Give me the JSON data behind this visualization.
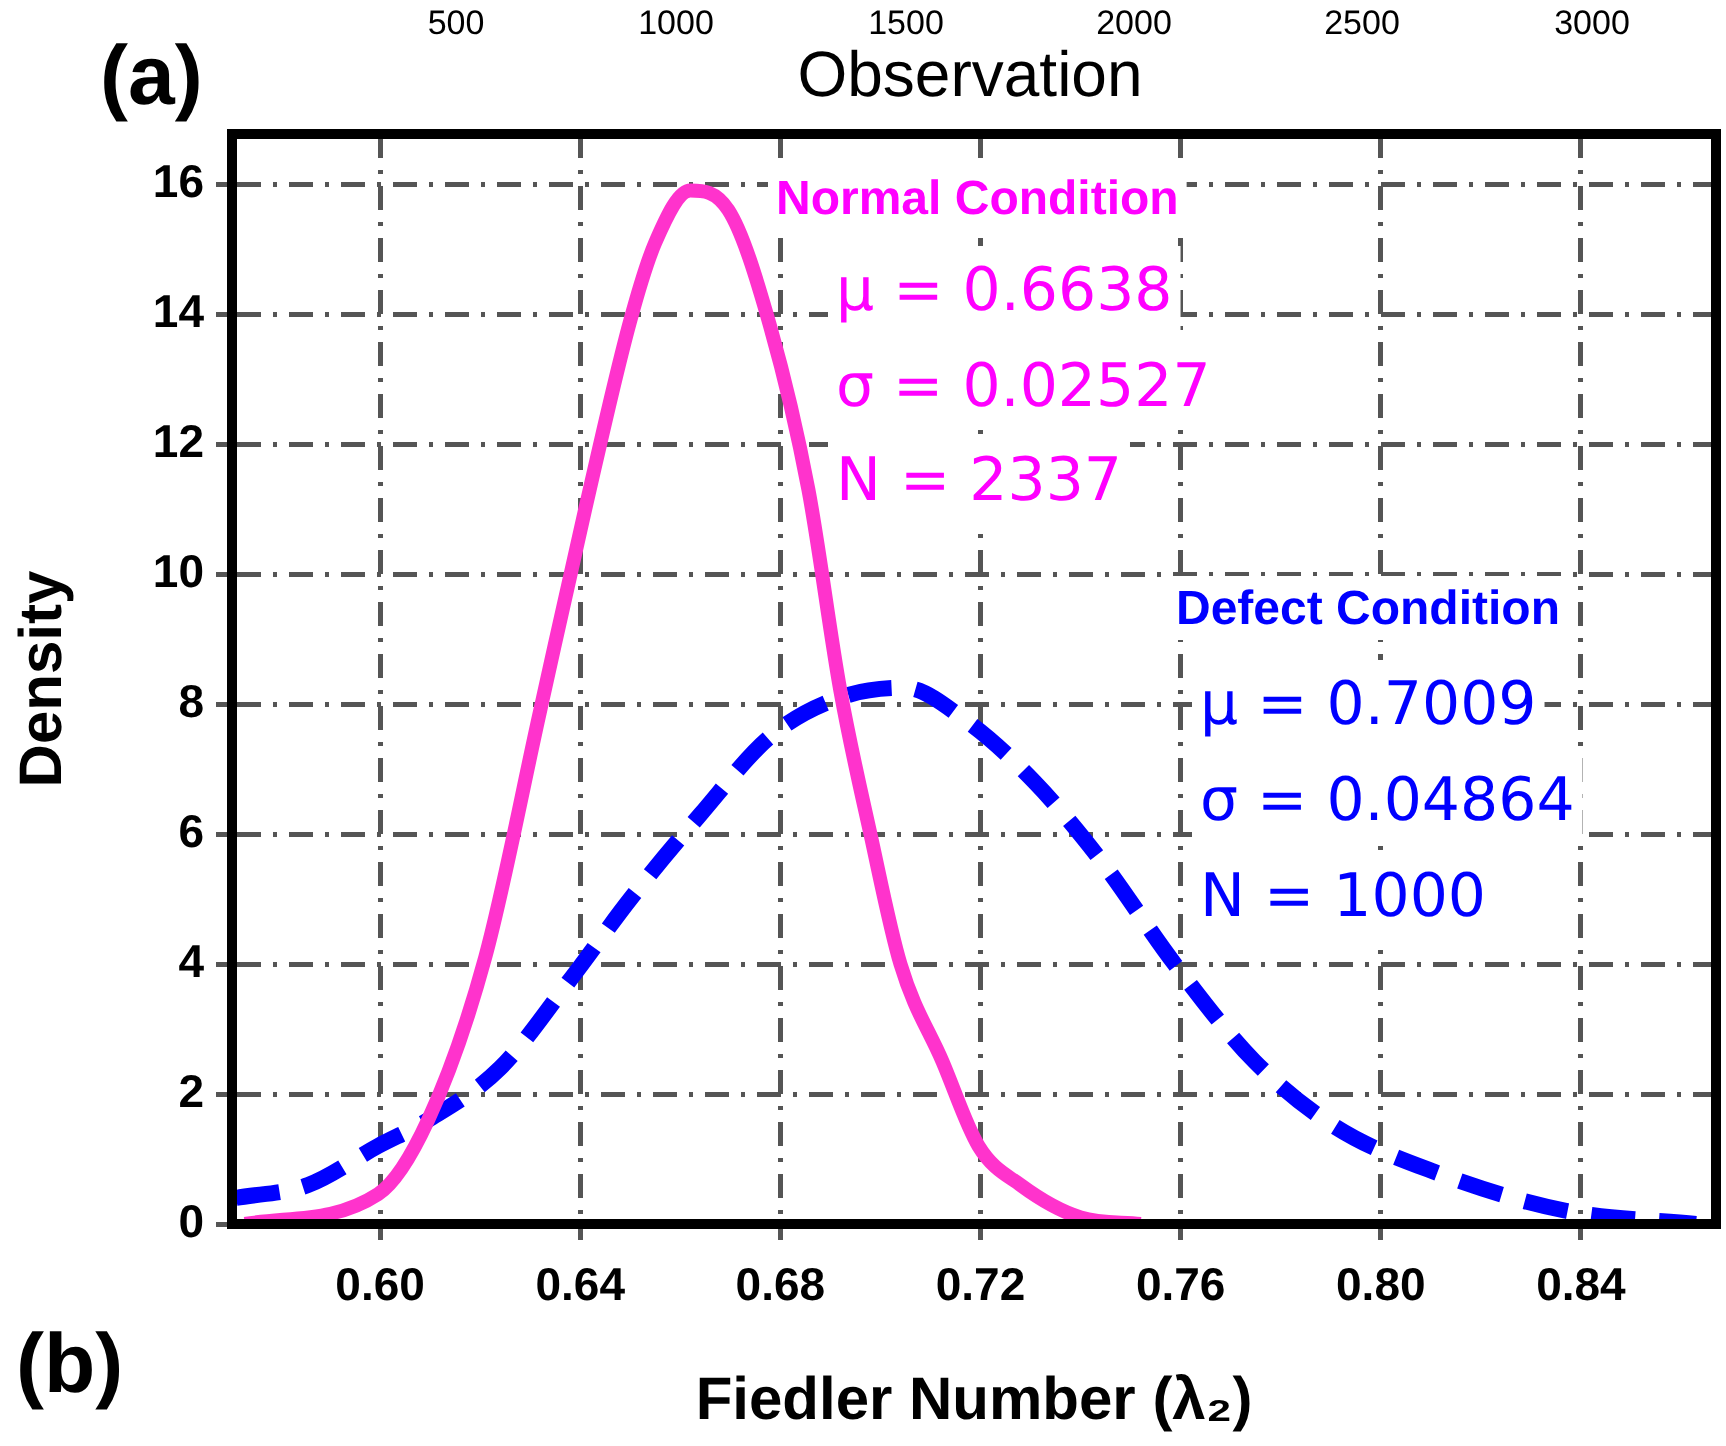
{
  "chart_data": {
    "type": "line",
    "xlabel": "Fiedler Number (λ₂)",
    "ylabel": "Density",
    "xlim": [
      0.5704,
      0.867
    ],
    "ylim": [
      0,
      16.77
    ],
    "xticks": [
      {
        "value": 0.6,
        "label": "0.60"
      },
      {
        "value": 0.64,
        "label": "0.64"
      },
      {
        "value": 0.68,
        "label": "0.68"
      },
      {
        "value": 0.72,
        "label": "0.72"
      },
      {
        "value": 0.76,
        "label": "0.76"
      },
      {
        "value": 0.8,
        "label": "0.80"
      },
      {
        "value": 0.84,
        "label": "0.84"
      }
    ],
    "yticks": [
      0,
      2,
      4,
      6,
      8,
      10,
      12,
      14,
      16
    ],
    "grid": true,
    "legend": false,
    "marker": "none",
    "series": [
      {
        "name": "Normal Condition",
        "color": "#ff33cc",
        "line_style": "solid",
        "x": [
          0.573,
          0.5996,
          0.6096,
          0.621,
          0.632,
          0.641,
          0.65,
          0.655,
          0.662,
          0.6696,
          0.678,
          0.6856,
          0.692,
          0.698,
          0.704,
          0.7124,
          0.7196,
          0.728,
          0.74,
          0.752
        ],
        "values": [
          0,
          0.46,
          1.6,
          4.1,
          7.9,
          11.0,
          13.9,
          15.1,
          15.9,
          15.6,
          13.8,
          11.3,
          8.2,
          6.0,
          4.0,
          2.5,
          1.2,
          0.6,
          0.1,
          0
        ]
      },
      {
        "name": "Defect Condition",
        "color": "#0000ff",
        "line_style": "dashed",
        "x": [
          0.5712,
          0.5856,
          0.5996,
          0.6096,
          0.624,
          0.6384,
          0.65,
          0.664,
          0.678,
          0.692,
          0.7048,
          0.717,
          0.7308,
          0.744,
          0.7588,
          0.7748,
          0.7908,
          0.8108,
          0.8372,
          0.863
        ],
        "values": [
          0.4,
          0.6,
          1.2,
          1.6,
          2.4,
          3.8,
          5.0,
          6.3,
          7.5,
          8.1,
          8.25,
          7.75,
          6.8,
          5.6,
          4.0,
          2.5,
          1.5,
          0.8,
          0.2,
          0
        ]
      }
    ],
    "annotations": [
      "(a)",
      "500",
      "1000",
      "1500",
      "2000",
      "2500",
      "3000",
      "Observation",
      "μ = 0.6638",
      "σ = 0.02527",
      "N = 2337",
      "μ = 0.7009",
      "σ = 0.04864",
      "N = 1000",
      "(b)"
    ]
  }
}
